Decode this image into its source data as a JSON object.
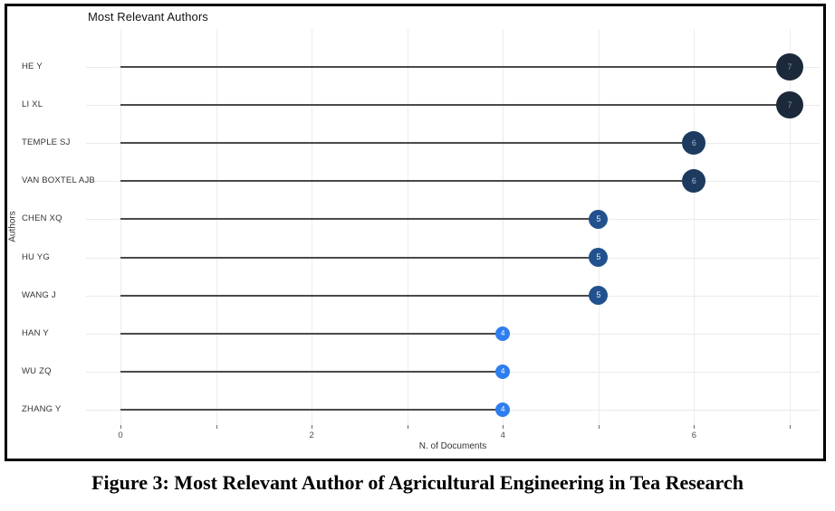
{
  "figure": {
    "caption": "Figure 3: Most Relevant Author of Agricultural Engineering in Tea Research"
  },
  "chart_data": {
    "type": "bar",
    "variant": "lollipop",
    "orientation": "horizontal",
    "title": "Most Relevant Authors",
    "xlabel": "N. of Documents",
    "ylabel": "Authors",
    "categories": [
      "HE Y",
      "LI XL",
      "TEMPLE SJ",
      "VAN BOXTEL AJB",
      "CHEN XQ",
      "HU YG",
      "WANG J",
      "HAN Y",
      "WU ZQ",
      "ZHANG Y"
    ],
    "values": [
      7,
      7,
      6,
      6,
      5,
      5,
      5,
      4,
      4,
      4
    ],
    "xlim": [
      0,
      7
    ],
    "x_tick_labels": [
      "0",
      "2",
      "4",
      "6"
    ],
    "x_tick_values": [
      0,
      2,
      4,
      6
    ],
    "grid": "on",
    "legend": "none",
    "colors": {
      "stem": "#4a4a4a",
      "gridline": "#ececec",
      "frame_border": "#000000"
    },
    "point_styles": {
      "7": {
        "fill": "#1b293a",
        "label_color": "#7f93a8",
        "diameter": 30
      },
      "6": {
        "fill": "#1d3a5f",
        "label_color": "#a9b9cc",
        "diameter": 26
      },
      "5": {
        "fill": "#21518e",
        "label_color": "#e8f0f8",
        "diameter": 21
      },
      "4": {
        "fill": "#2e7ef0",
        "label_color": "#ffffff",
        "diameter": 16
      }
    }
  }
}
